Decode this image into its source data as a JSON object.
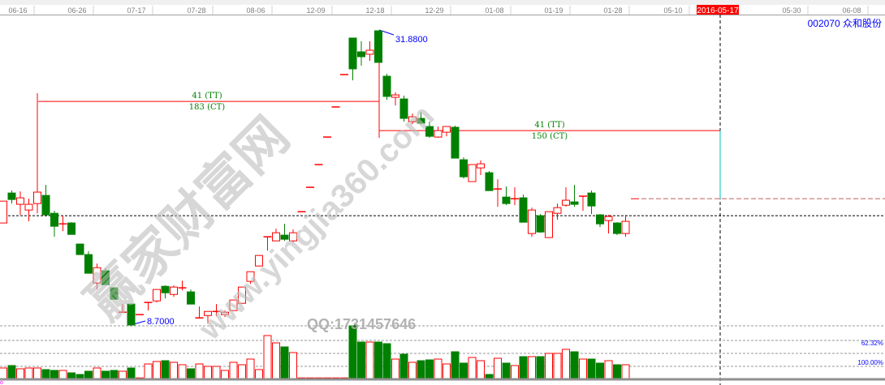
{
  "window": {
    "stock_code": "002070",
    "stock_name": "众和股份"
  },
  "colors": {
    "up": "#ff0000",
    "down": "#008000",
    "price_label": "#0000ff",
    "annotation": "#008000",
    "cursor_date_bg": "#ff0000",
    "projection_line": "#00c0c0"
  },
  "watermark": {
    "site_name": "赢家财富网",
    "url": "www.yingjia360.com",
    "qq": "QQ:1731457646"
  },
  "chart_data": {
    "type": "candlestick",
    "x_tick_labels": [
      "06-16",
      "06-26",
      "07-17",
      "07-28",
      "08-06",
      "12-09",
      "12-18",
      "12-29",
      "01-08",
      "01-19",
      "01-28",
      "05-10",
      "05-30",
      "06-08"
    ],
    "cursor_date": "2016-05-17",
    "high_marker": "31.8800",
    "low_marker": "8.7000",
    "ylim": [
      8.5,
      32.5
    ],
    "annotations": [
      {
        "tt": "41 (TT)",
        "ct": "183 (CT)",
        "price": 26.32
      },
      {
        "tt": "41 (TT)",
        "ct": "150 (CT)",
        "price": 24.02
      }
    ],
    "projection_price": 18.65,
    "current_price_line": 17.31,
    "volume_levels": [
      "62.32%",
      "100.00%"
    ],
    "candles": [
      [
        16.74,
        18.46,
        16.74,
        18.46
      ],
      [
        19.1,
        19.29,
        18.27,
        18.59
      ],
      [
        18.21,
        19.23,
        17.38,
        18.72
      ],
      [
        17.76,
        18.65,
        16.87,
        18.21
      ],
      [
        18.27,
        26.96,
        17.5,
        19.17
      ],
      [
        18.91,
        19.74,
        17.38,
        17.38
      ],
      [
        17.5,
        17.7,
        15.65,
        16.48
      ],
      [
        16.67,
        17.31,
        16.1,
        16.67
      ],
      [
        16.74,
        16.8,
        15.84,
        15.84
      ],
      [
        15.08,
        15.08,
        14.25,
        14.25
      ],
      [
        14.25,
        14.5,
        12.78,
        12.78
      ],
      [
        12.01,
        13.54,
        11.5,
        13.22
      ],
      [
        12.97,
        13.16,
        11.88,
        11.88
      ],
      [
        11.63,
        11.63,
        10.73,
        10.73
      ],
      [
        9.71,
        10.35,
        9.71,
        9.71
      ],
      [
        10.35,
        10.35,
        8.7,
        8.7
      ],
      [
        9.52,
        9.52,
        9.52,
        9.52
      ],
      [
        10.48,
        10.48,
        9.84,
        10.48
      ],
      [
        10.6,
        11.5,
        10.48,
        11.5
      ],
      [
        11.75,
        11.82,
        10.79,
        11.24
      ],
      [
        11.11,
        11.82,
        10.92,
        11.69
      ],
      [
        11.63,
        12.2,
        11.43,
        11.63
      ],
      [
        11.31,
        11.5,
        10.35,
        10.35
      ],
      [
        9.26,
        10.16,
        9.26,
        9.26
      ],
      [
        9.45,
        9.77,
        8.81,
        9.77
      ],
      [
        9.77,
        10.35,
        9.39,
        9.77
      ],
      [
        9.52,
        9.84,
        9.33,
        9.71
      ],
      [
        9.84,
        10.67,
        9.84,
        10.67
      ],
      [
        10.41,
        11.69,
        10.41,
        11.69
      ],
      [
        12.14,
        12.9,
        11.94,
        12.9
      ],
      [
        13.35,
        14.18,
        13.35,
        14.18
      ],
      [
        15.65,
        15.65,
        14.56,
        15.65
      ],
      [
        15.33,
        16.29,
        15.33,
        15.97
      ],
      [
        15.78,
        16.67,
        15.33,
        15.46
      ],
      [
        15.33,
        16.23,
        15.2,
        15.97
      ],
      [
        17.63,
        17.63,
        17.63,
        17.63
      ],
      [
        19.55,
        19.55,
        19.55,
        19.55
      ],
      [
        21.34,
        21.34,
        21.34,
        21.34
      ],
      [
        23.51,
        23.51,
        23.51,
        23.51
      ],
      [
        25.88,
        25.88,
        25.88,
        25.88
      ],
      [
        28.43,
        28.43,
        28.43,
        28.43
      ],
      [
        31.31,
        31.31,
        27.98,
        28.88
      ],
      [
        30.22,
        31.05,
        29.13,
        29.84
      ],
      [
        30.03,
        31.05,
        29.52,
        30.35
      ],
      [
        31.88,
        31.88,
        29.39,
        29.39
      ],
      [
        28.3,
        28.49,
        26.45,
        26.71
      ],
      [
        26.64,
        27.03,
        26.0,
        26.83
      ],
      [
        26.51,
        26.77,
        24.72,
        24.98
      ],
      [
        24.72,
        25.36,
        24.53,
        25.11
      ],
      [
        24.98,
        25.49,
        24.53,
        24.6
      ],
      [
        24.34,
        24.72,
        23.45,
        23.57
      ],
      [
        23.51,
        24.34,
        23.45,
        24.02
      ],
      [
        23.89,
        24.34,
        23.57,
        24.34
      ],
      [
        24.28,
        24.41,
        21.85,
        21.85
      ],
      [
        21.72,
        21.91,
        20.25,
        20.38
      ],
      [
        20.0,
        21.34,
        20.0,
        21.34
      ],
      [
        21.08,
        21.66,
        20.51,
        21.4
      ],
      [
        20.7,
        20.83,
        19.29,
        19.29
      ],
      [
        19.42,
        20.19,
        18.02,
        19.42
      ],
      [
        18.78,
        19.61,
        18.14,
        18.27
      ],
      [
        18.65,
        19.55,
        18.14,
        18.65
      ],
      [
        18.72,
        18.97,
        16.8,
        16.8
      ],
      [
        15.91,
        17.95,
        15.65,
        17.76
      ],
      [
        17.31,
        17.44,
        15.97,
        16.03
      ],
      [
        15.59,
        17.63,
        15.59,
        17.63
      ],
      [
        17.5,
        18.27,
        16.99,
        17.95
      ],
      [
        18.14,
        19.55,
        18.02,
        18.53
      ],
      [
        18.4,
        19.74,
        18.02,
        18.21
      ],
      [
        18.85,
        18.85,
        17.7,
        18.85
      ],
      [
        19.1,
        19.29,
        17.44,
        18.08
      ],
      [
        17.38,
        17.44,
        16.42,
        16.67
      ],
      [
        16.93,
        17.38,
        15.91,
        17.25
      ],
      [
        16.74,
        16.8,
        15.78,
        15.91
      ],
      [
        15.91,
        17.38,
        15.65,
        16.87
      ]
    ],
    "volume": [
      13,
      16,
      12,
      13,
      13,
      11,
      10,
      10,
      7,
      5,
      9,
      13,
      9,
      10,
      9,
      13,
      0.5,
      18,
      21,
      22,
      20,
      17,
      12,
      18,
      15,
      15,
      10,
      20,
      17,
      24,
      11,
      53,
      44,
      39,
      32,
      0.5,
      0.5,
      0.5,
      0.5,
      0.5,
      0.5,
      65,
      45,
      45,
      45,
      43,
      24,
      30,
      20,
      22,
      23,
      24,
      18,
      33,
      19,
      26,
      22,
      5,
      25,
      19,
      16,
      27,
      27,
      27,
      31,
      31,
      36,
      33,
      24,
      24,
      19,
      22,
      17,
      17
    ],
    "candle_format": [
      "open",
      "high",
      "low",
      "close"
    ]
  }
}
